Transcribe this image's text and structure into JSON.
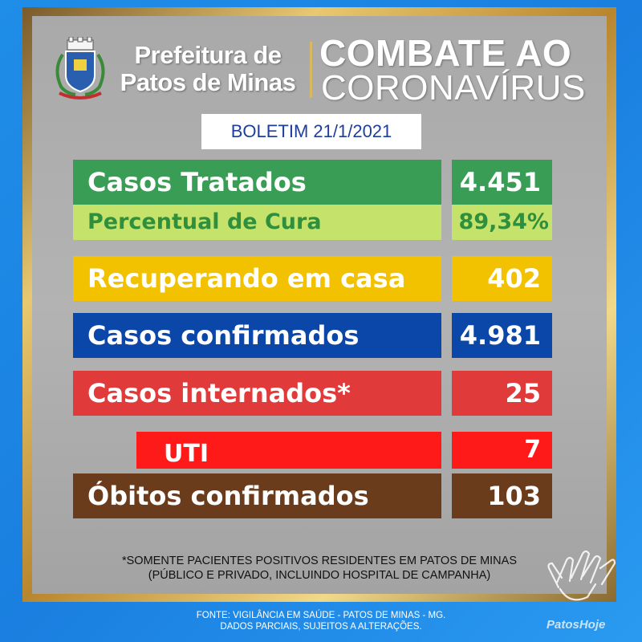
{
  "header": {
    "prefeitura_line1": "Prefeitura de",
    "prefeitura_line2": "Patos de Minas",
    "combate": "COMBATE AO",
    "coronavirus": "CORONAVÍRUS",
    "boletim": "BOLETIM 21/1/2021"
  },
  "rows": [
    {
      "label": "Casos Tratados",
      "value": "4.451",
      "color": "#3a9d55",
      "valcolor": "#3a9d55",
      "text": "#ffffff"
    },
    {
      "label": "Percentual de Cura",
      "value": "89,34%",
      "color": "#c5e36a",
      "valcolor": "#c5e36a",
      "text": "#2f8f3d"
    },
    {
      "label": "Recuperando em casa",
      "value": "402",
      "color": "#f2c200",
      "valcolor": "#f2c200",
      "text": "#ffffff"
    },
    {
      "label": "Casos confirmados",
      "value": "4.981",
      "color": "#0b47a8",
      "valcolor": "#0b47a8",
      "text": "#ffffff"
    },
    {
      "label": "Casos internados*",
      "value": "25",
      "color": "#e03a3a",
      "valcolor": "#e03a3a",
      "text": "#ffffff"
    },
    {
      "label": "UTI",
      "value": "7",
      "color": "#ff1a1a",
      "valcolor": "#ff1a1a",
      "text": "#ffffff"
    },
    {
      "label": "Óbitos confirmados",
      "value": "103",
      "color": "#6b3c1c",
      "valcolor": "#6b3c1c",
      "text": "#ffffff"
    }
  ],
  "note_line1": "*SOMENTE PACIENTES POSITIVOS RESIDENTES EM PATOS DE MINAS",
  "note_line2": "(PÚBLICO E PRIVADO, INCLUINDO HOSPITAL DE CAMPANHA)",
  "footer_line1": "FONTE: VIGILÂNCIA EM SAÚDE - PATOS DE MINAS - MG.",
  "footer_line2": "DADOS PARCIAIS, SUJEITOS A ALTERAÇÕES.",
  "brand": "PatosHoje",
  "icons": {
    "crest": "municipal-crest-icon",
    "hands": "washing-hands-icon"
  }
}
